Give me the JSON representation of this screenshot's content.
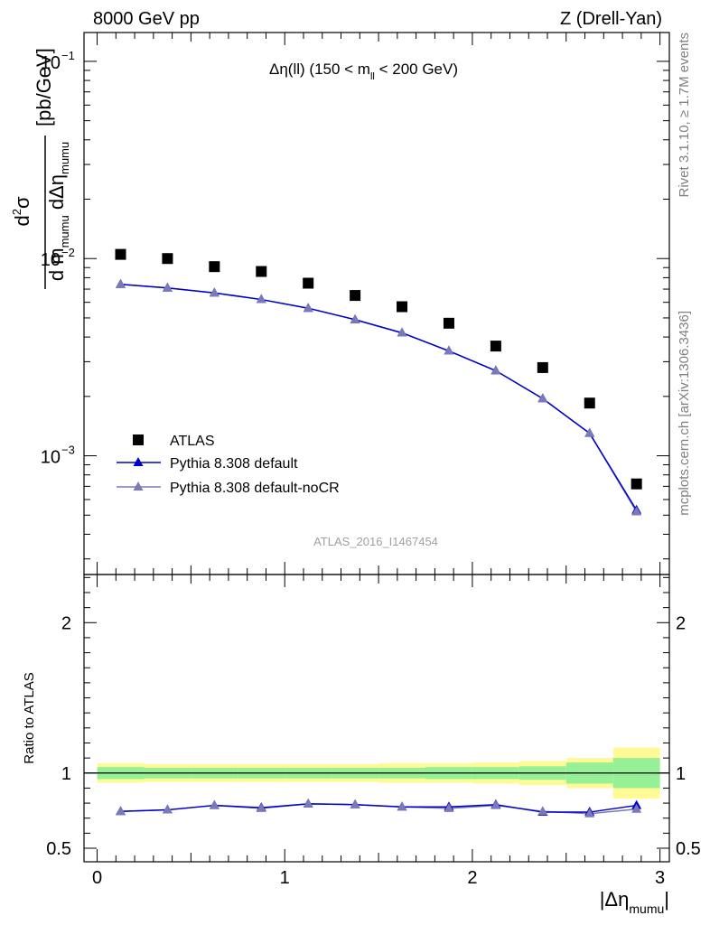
{
  "header": {
    "left": "8000 GeV pp",
    "right": "Z (Drell-Yan)"
  },
  "side_labels": {
    "rivet": "Rivet 3.1.10, ≥ 1.7M events",
    "mcplots": "mcplots.cern.ch [arXiv:1306.3436]"
  },
  "watermark": "ATLAS_2016_I1467454",
  "chart_data": [
    {
      "type": "scatter",
      "title": "Δη(ll) (150 < m_ll < 200 GeV)",
      "title_parts": {
        "main": "Δη(ll) (150 < m",
        "sub": "ll",
        "tail": " < 200 GeV)"
      },
      "ylabel": "d²σ / d m_mumu dΔη_mumu [pb/GeV]",
      "ylabel_unit": "[pb/GeV]",
      "yscale": "log",
      "ylim": [
        0.00025,
        0.14
      ],
      "xlim": [
        -0.07,
        3.05
      ],
      "yticks": [
        {
          "value": 0.1,
          "label": "10",
          "exp": "−1"
        },
        {
          "value": 0.01,
          "label": "10",
          "exp": "−2"
        },
        {
          "value": 0.001,
          "label": "10",
          "exp": "−3"
        }
      ],
      "legend_position": "lower-left",
      "x": [
        0.125,
        0.375,
        0.625,
        0.875,
        1.125,
        1.375,
        1.625,
        1.875,
        2.125,
        2.375,
        2.625,
        2.875
      ],
      "series": [
        {
          "name": "ATLAS",
          "marker": "square",
          "color": "#000000",
          "values": [
            0.0105,
            0.01,
            0.0091,
            0.0086,
            0.0075,
            0.0065,
            0.0057,
            0.0047,
            0.0036,
            0.0028,
            0.00185,
            0.00072
          ]
        },
        {
          "name": "Pythia 8.308 default",
          "marker": "triangle",
          "color": "#0000cc",
          "values": [
            0.0074,
            0.0071,
            0.0067,
            0.0062,
            0.0056,
            0.0049,
            0.0042,
            0.0034,
            0.0027,
            0.00195,
            0.0013,
            0.00053
          ]
        },
        {
          "name": "Pythia 8.308 default-noCR",
          "marker": "triangle",
          "color": "#7a7ab8",
          "values": [
            0.0074,
            0.0071,
            0.0067,
            0.0062,
            0.0056,
            0.0049,
            0.0042,
            0.0034,
            0.0027,
            0.00195,
            0.0013,
            0.00052
          ]
        }
      ]
    },
    {
      "type": "scatter",
      "title": "Ratio to ATLAS",
      "ylabel": "Ratio to ATLAS",
      "xlabel": "|Δη_mumu|",
      "xlabel_parts": {
        "main": "|Δη",
        "sub": "mumu",
        "tail": "|"
      },
      "ylim": [
        0.41,
        2.32
      ],
      "xlim": [
        -0.07,
        3.05
      ],
      "xticks": [
        0,
        1,
        2,
        3
      ],
      "yticks": [
        {
          "value": 0.5,
          "label": "0.5"
        },
        {
          "value": 1,
          "label": "1"
        },
        {
          "value": 2,
          "label": "2"
        }
      ],
      "bins": [
        0,
        0.25,
        0.5,
        0.75,
        1.0,
        1.25,
        1.5,
        1.75,
        2.0,
        2.25,
        2.5,
        2.75,
        3.0
      ],
      "band_inner": [
        0.04,
        0.035,
        0.035,
        0.035,
        0.035,
        0.035,
        0.035,
        0.04,
        0.04,
        0.045,
        0.07,
        0.1
      ],
      "band_outer": [
        0.065,
        0.06,
        0.06,
        0.06,
        0.06,
        0.06,
        0.065,
        0.065,
        0.07,
        0.08,
        0.1,
        0.17
      ],
      "band_colors": {
        "inner": "#96f096",
        "outer": "#fffa96"
      },
      "x": [
        0.125,
        0.375,
        0.625,
        0.875,
        1.125,
        1.375,
        1.625,
        1.875,
        2.125,
        2.375,
        2.625,
        2.875
      ],
      "series": [
        {
          "name": "Pythia 8.308 default",
          "color": "#0000cc",
          "values": [
            0.745,
            0.755,
            0.785,
            0.77,
            0.795,
            0.79,
            0.775,
            0.775,
            0.79,
            0.74,
            0.74,
            0.785
          ]
        },
        {
          "name": "Pythia 8.308 default-noCR",
          "color": "#7a7ab8",
          "values": [
            0.745,
            0.755,
            0.785,
            0.765,
            0.795,
            0.79,
            0.775,
            0.765,
            0.785,
            0.745,
            0.73,
            0.76
          ]
        }
      ]
    }
  ]
}
